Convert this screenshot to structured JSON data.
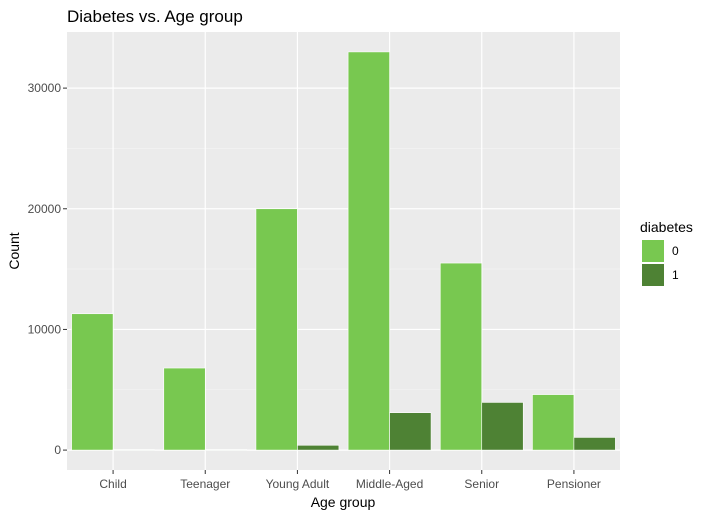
{
  "chart_data": {
    "type": "bar",
    "title": "Diabetes vs. Age group",
    "xlabel": "Age group",
    "ylabel": "Count",
    "categories": [
      "Child",
      "Teenager",
      "Young Adult",
      "Middle-Aged",
      "Senior",
      "Pensioner"
    ],
    "series": [
      {
        "name": "0",
        "values": [
          11300,
          6800,
          20000,
          33000,
          15500,
          4600
        ]
      },
      {
        "name": "1",
        "values": [
          40,
          30,
          400,
          3100,
          3950,
          1050
        ]
      }
    ],
    "ylim": [
      -1650,
      34650
    ],
    "yticks": [
      0,
      10000,
      20000,
      30000
    ],
    "ytick_labels": [
      "0",
      "10000",
      "20000",
      "30000"
    ],
    "grid": true,
    "legend_position": "right",
    "legend_title": "diabetes",
    "colors": {
      "series_0": "#78c850",
      "series_1": "#4e8234",
      "panel_bg": "#ebebeb",
      "grid_major": "#ffffff",
      "grid_minor": "#f5f5f5"
    }
  }
}
